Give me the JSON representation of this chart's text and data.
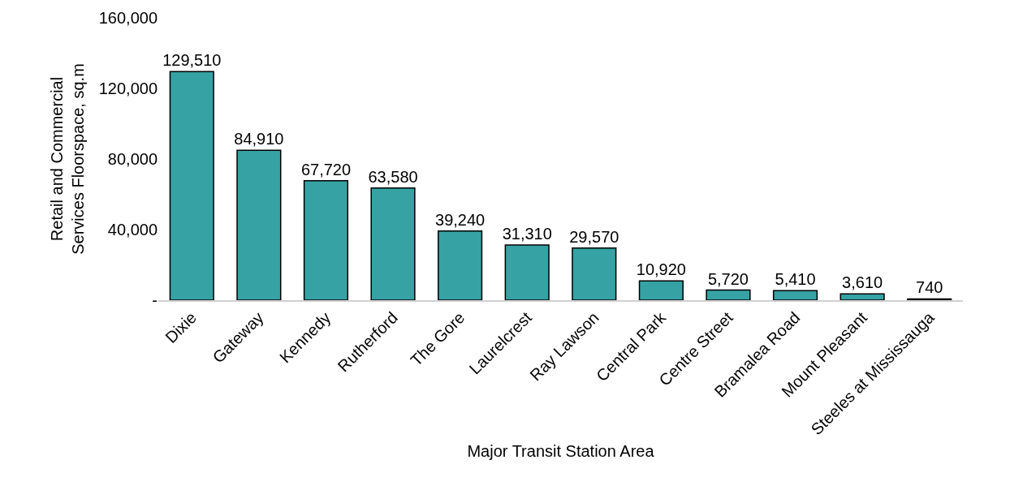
{
  "chart_data": {
    "type": "bar",
    "xlabel": "Major Transit Station Area",
    "ylabel": "Retail and Commercial\nServices Floorspace, sq.m",
    "categories": [
      "Dixie",
      "Gateway",
      "Kennedy",
      "Rutherford",
      "The Gore",
      "Laurelcrest",
      "Ray Lawson",
      "Central Park",
      "Centre Street",
      "Bramalea Road",
      "Mount Pleasant",
      "Steeles at Mississauga"
    ],
    "values": [
      129510,
      84910,
      67720,
      63580,
      39240,
      31310,
      29570,
      10920,
      5720,
      5410,
      3610,
      740
    ],
    "value_labels": [
      "129,510",
      "84,910",
      "67,720",
      "63,580",
      "39,240",
      "31,310",
      "29,570",
      "10,920",
      "5,720",
      "5,410",
      "3,610",
      "740"
    ],
    "color": "#36a2a3",
    "ylim": [
      0,
      160000
    ],
    "yticks": [
      {
        "value": 0,
        "label": "-"
      },
      {
        "value": 40000,
        "label": "40,000"
      },
      {
        "value": 80000,
        "label": "80,000"
      },
      {
        "value": 120000,
        "label": "120,000"
      },
      {
        "value": 160000,
        "label": "160,000"
      }
    ],
    "grid": false,
    "legend": false
  }
}
